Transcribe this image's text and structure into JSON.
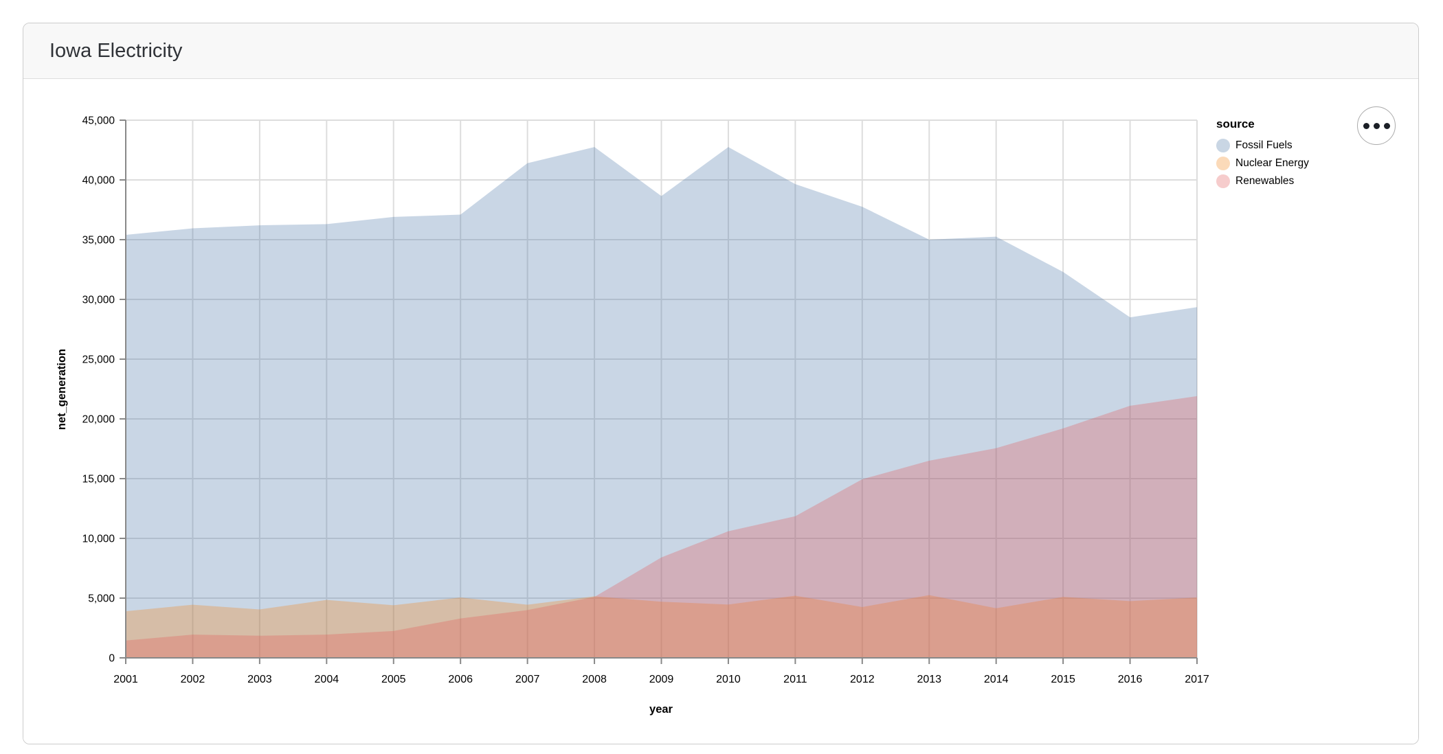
{
  "window": {
    "title": "Iowa Electricity"
  },
  "legend": {
    "title": "source",
    "items": [
      {
        "label": "Fossil Fuels",
        "swatch_color": "#c9d6e4"
      },
      {
        "label": "Nuclear Energy",
        "swatch_color": "#fbdab9"
      },
      {
        "label": "Renewables",
        "swatch_color": "#f6cccc"
      }
    ]
  },
  "actions_button": {
    "icon": "ellipsis-icon",
    "dots": 3
  },
  "chart_data": {
    "type": "area",
    "layered": true,
    "title": "Iowa Electricity",
    "xlabel": "year",
    "ylabel": "net_generation",
    "x": [
      2001,
      2002,
      2003,
      2004,
      2005,
      2006,
      2007,
      2008,
      2009,
      2010,
      2011,
      2012,
      2013,
      2014,
      2015,
      2016,
      2017
    ],
    "ylim": [
      0,
      45000
    ],
    "ytick_step": 5000,
    "y_tick_labels": [
      "0",
      "5,000",
      "10,000",
      "15,000",
      "20,000",
      "25,000",
      "30,000",
      "35,000",
      "40,000",
      "45,000"
    ],
    "grid": true,
    "legend_position": "right",
    "fill_opacity": 0.3,
    "series": [
      {
        "name": "Fossil Fuels",
        "color": "#4c78a8",
        "values": [
          35400,
          35950,
          36200,
          36300,
          36900,
          37100,
          41400,
          42750,
          38650,
          42750,
          39650,
          37750,
          35000,
          35250,
          32300,
          28500,
          29350
        ]
      },
      {
        "name": "Nuclear Energy",
        "color": "#f58518",
        "values": [
          3900,
          4450,
          4050,
          4850,
          4400,
          5050,
          4450,
          5150,
          4700,
          4460,
          5200,
          4250,
          5250,
          4150,
          5100,
          4750,
          5050
        ]
      },
      {
        "name": "Renewables",
        "color": "#e45756",
        "values": [
          1450,
          1950,
          1850,
          1950,
          2250,
          3300,
          4000,
          5100,
          8400,
          10600,
          11850,
          14950,
          16500,
          17550,
          19200,
          21100,
          21900
        ]
      }
    ],
    "style": {
      "grid_color": "#dddddd",
      "domain_color": "#888888",
      "label_color": "#000000"
    }
  }
}
